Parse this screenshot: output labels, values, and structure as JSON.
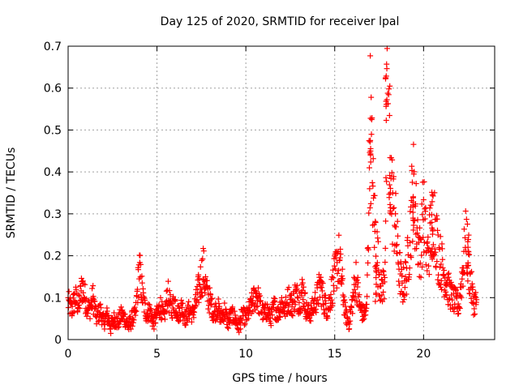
{
  "chart_data": {
    "type": "scatter",
    "title": "Day 125 of 2020, SRMTID for receiver lpal",
    "xlabel": "GPS time / hours",
    "ylabel": "SRMTID / TECUs",
    "xlim": [
      0,
      24
    ],
    "ylim": [
      0,
      0.7
    ],
    "x_ticks": [
      0,
      5,
      10,
      15,
      20
    ],
    "x_tick_labels": [
      "0",
      "5",
      "10",
      "15",
      "20"
    ],
    "y_ticks": [
      0,
      0.1,
      0.2,
      0.3,
      0.4,
      0.5,
      0.6,
      0.7
    ],
    "y_tick_labels": [
      "0",
      "0.1",
      "0.2",
      "0.3",
      "0.4",
      "0.5",
      "0.6",
      "0.7"
    ],
    "grid": true,
    "marker": "+",
    "color": "#ff0000",
    "series": [
      {
        "name": "SRMTID",
        "x": [
          0.0,
          0.2,
          0.4,
          0.6,
          0.8,
          1.0,
          1.2,
          1.4,
          1.6,
          1.8,
          2.0,
          2.2,
          2.4,
          2.6,
          2.8,
          3.0,
          3.2,
          3.4,
          3.6,
          3.8,
          4.0,
          4.2,
          4.4,
          4.6,
          4.8,
          5.0,
          5.2,
          5.4,
          5.6,
          5.8,
          6.0,
          6.2,
          6.4,
          6.6,
          6.8,
          7.0,
          7.2,
          7.4,
          7.6,
          7.8,
          8.0,
          8.2,
          8.4,
          8.6,
          8.8,
          9.0,
          9.2,
          9.4,
          9.6,
          9.8,
          10.0,
          10.2,
          10.4,
          10.6,
          10.8,
          11.0,
          11.2,
          11.4,
          11.6,
          11.8,
          12.0,
          12.2,
          12.4,
          12.6,
          12.8,
          13.0,
          13.2,
          13.4,
          13.6,
          13.8,
          14.0,
          14.2,
          14.4,
          14.6,
          14.8,
          15.0,
          15.2,
          15.4,
          15.6,
          15.8,
          16.0,
          16.2,
          16.4,
          16.6,
          16.8,
          17.0,
          17.2,
          17.4,
          17.6,
          17.8,
          18.0,
          18.2,
          18.4,
          18.6,
          18.8,
          19.0,
          19.2,
          19.4,
          19.6,
          19.8,
          20.0,
          20.2,
          20.4,
          20.6,
          20.8,
          21.0,
          21.2,
          21.4,
          21.6,
          21.8,
          22.0,
          22.2,
          22.4,
          22.6,
          22.8
        ],
        "y": [
          0.09,
          0.07,
          0.1,
          0.08,
          0.13,
          0.09,
          0.07,
          0.1,
          0.05,
          0.07,
          0.04,
          0.06,
          0.03,
          0.05,
          0.04,
          0.06,
          0.05,
          0.03,
          0.05,
          0.06,
          0.17,
          0.1,
          0.06,
          0.07,
          0.04,
          0.06,
          0.08,
          0.05,
          0.11,
          0.07,
          0.09,
          0.06,
          0.08,
          0.05,
          0.07,
          0.06,
          0.09,
          0.13,
          0.17,
          0.11,
          0.09,
          0.06,
          0.08,
          0.05,
          0.07,
          0.04,
          0.06,
          0.05,
          0.03,
          0.06,
          0.05,
          0.07,
          0.09,
          0.11,
          0.08,
          0.06,
          0.07,
          0.05,
          0.08,
          0.06,
          0.09,
          0.07,
          0.1,
          0.08,
          0.11,
          0.09,
          0.12,
          0.07,
          0.06,
          0.08,
          0.1,
          0.13,
          0.09,
          0.07,
          0.11,
          0.15,
          0.2,
          0.14,
          0.06,
          0.04,
          0.09,
          0.15,
          0.08,
          0.06,
          0.07,
          0.52,
          0.3,
          0.2,
          0.12,
          0.14,
          0.66,
          0.35,
          0.28,
          0.18,
          0.12,
          0.15,
          0.22,
          0.37,
          0.28,
          0.2,
          0.31,
          0.19,
          0.26,
          0.3,
          0.21,
          0.18,
          0.15,
          0.12,
          0.1,
          0.09,
          0.08,
          0.17,
          0.24,
          0.15,
          0.09
        ],
        "upper_spikes": [
          [
            17.0,
            0.53
          ],
          [
            17.3,
            0.2
          ],
          [
            17.9,
            0.66
          ],
          [
            18.1,
            0.4
          ],
          [
            19.4,
            0.37
          ],
          [
            20.5,
            0.3
          ],
          [
            22.5,
            0.25
          ]
        ]
      }
    ]
  }
}
